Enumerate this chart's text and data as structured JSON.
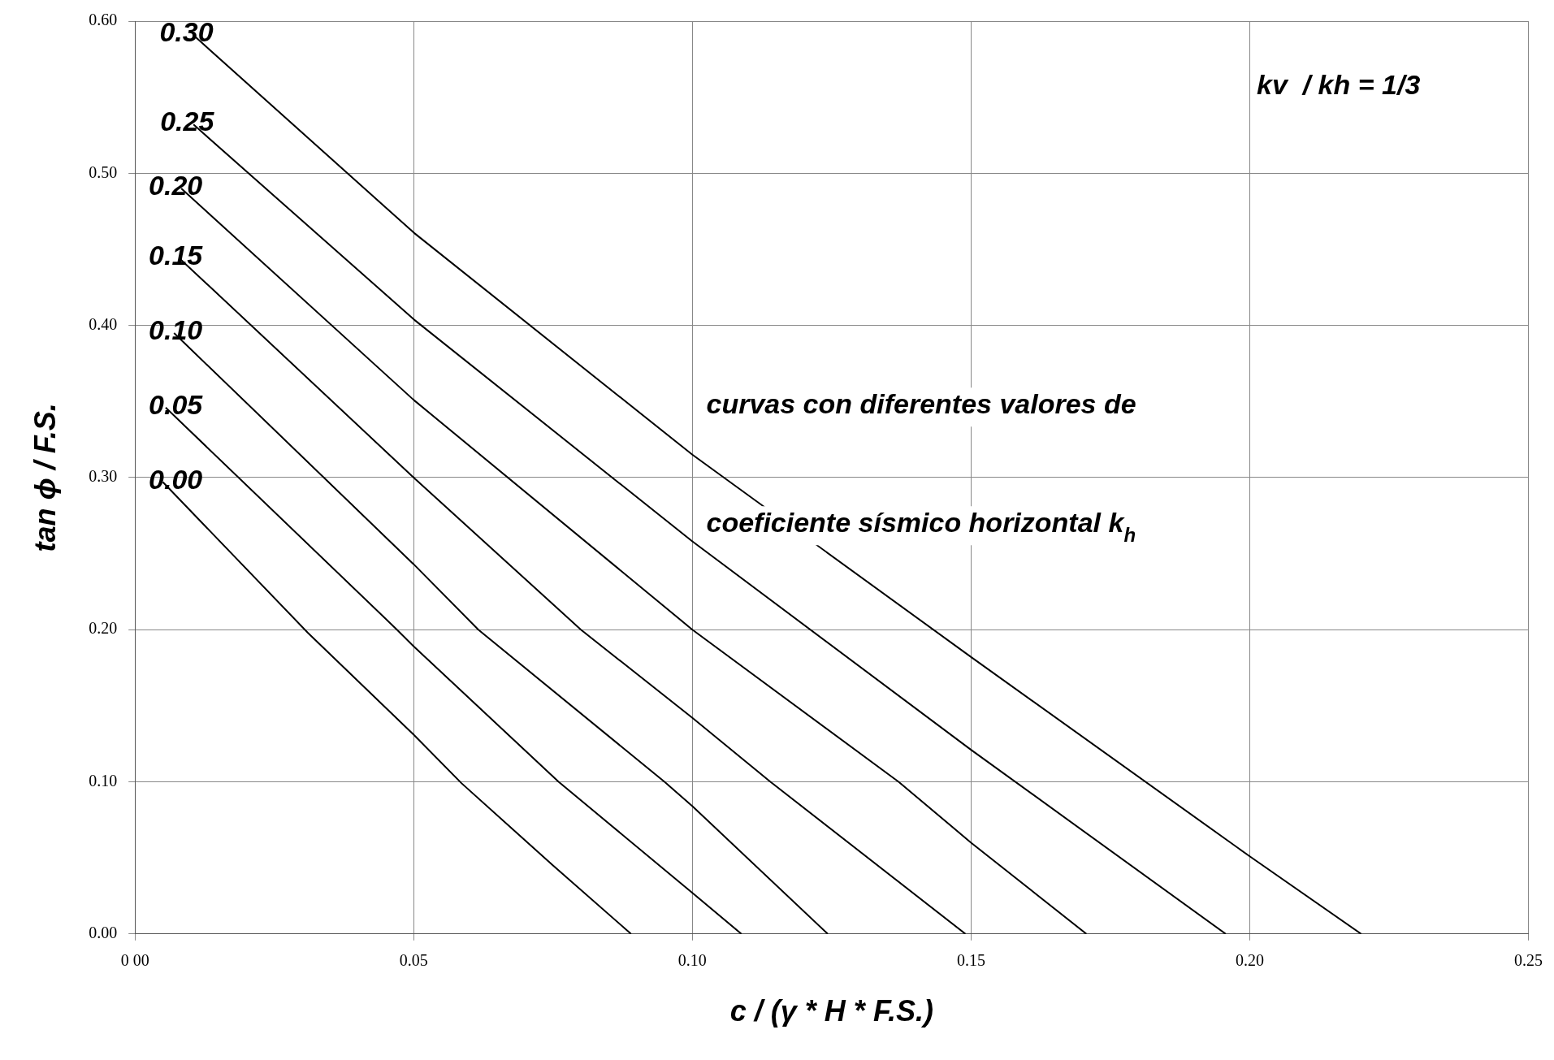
{
  "chart_data": {
    "type": "line",
    "xlabel": "c / (γ * H * F.S.)",
    "ylabel": "tan ϕ / F.S.",
    "xlim": [
      0,
      0.25
    ],
    "xticks": [
      {
        "value": 0,
        "label": "0 00"
      },
      {
        "value": 0.05,
        "label": "0.05"
      },
      {
        "value": 0.1,
        "label": "0.10"
      },
      {
        "value": 0.15,
        "label": "0.15"
      },
      {
        "value": 0.2,
        "label": "0.20"
      },
      {
        "value": 0.25,
        "label": "0.25"
      }
    ],
    "ylim": [
      0,
      0.6
    ],
    "yticks": [
      {
        "value": 0,
        "label": "0.00"
      },
      {
        "value": 0.1,
        "label": "0.10"
      },
      {
        "value": 0.2,
        "label": "0.20"
      },
      {
        "value": 0.3,
        "label": "0.30"
      },
      {
        "value": 0.4,
        "label": "0.40"
      },
      {
        "value": 0.5,
        "label": "0.50"
      },
      {
        "value": 0.6,
        "label": "0.60"
      }
    ],
    "grid": true,
    "legend": false,
    "marker": "none",
    "line_style": "solid",
    "annotations": [
      "kv  / kh = 1/3",
      "curvas con diferentes valores de",
      "coeficiente sísmico horizontal k$_{h}$"
    ],
    "series": [
      {
        "name": "0.30",
        "color": "#000000",
        "x": [
          0.0104,
          0.05,
          0.1,
          0.15,
          0.2,
          0.22
        ],
        "values": [
          0.591,
          0.461,
          0.315,
          0.182,
          0.051,
          0
        ]
      },
      {
        "name": "0.25",
        "color": "#000000",
        "x": [
          0.0105,
          0.05,
          0.1,
          0.15,
          0.1957
        ],
        "values": [
          0.532,
          0.404,
          0.258,
          0.121,
          0
        ]
      },
      {
        "name": "0.20",
        "color": "#000000",
        "x": [
          0.0083,
          0.05,
          0.1,
          0.137,
          0.15,
          0.1707
        ],
        "values": [
          0.49,
          0.351,
          0.2,
          0.1,
          0.06,
          0
        ]
      },
      {
        "name": "0.15",
        "color": "#000000",
        "x": [
          0.008,
          0.05,
          0.08,
          0.1,
          0.114,
          0.149
        ],
        "values": [
          0.444,
          0.3,
          0.2,
          0.142,
          0.1,
          0
        ]
      },
      {
        "name": "0.10",
        "color": "#000000",
        "x": [
          0.007,
          0.05,
          0.0616,
          0.095,
          0.1,
          0.1243
        ],
        "values": [
          0.395,
          0.243,
          0.2,
          0.1,
          0.084,
          0
        ]
      },
      {
        "name": "0.05",
        "color": "#000000",
        "x": [
          0.0055,
          0.047,
          0.05,
          0.076,
          0.1,
          0.1088
        ],
        "values": [
          0.346,
          0.2,
          0.189,
          0.1,
          0.027,
          0
        ]
      },
      {
        "name": "0.00",
        "color": "#000000",
        "x": [
          0.005,
          0.031,
          0.05,
          0.0586,
          0.075,
          0.089
        ],
        "values": [
          0.297,
          0.198,
          0.131,
          0.099,
          0.045,
          0
        ]
      }
    ]
  }
}
